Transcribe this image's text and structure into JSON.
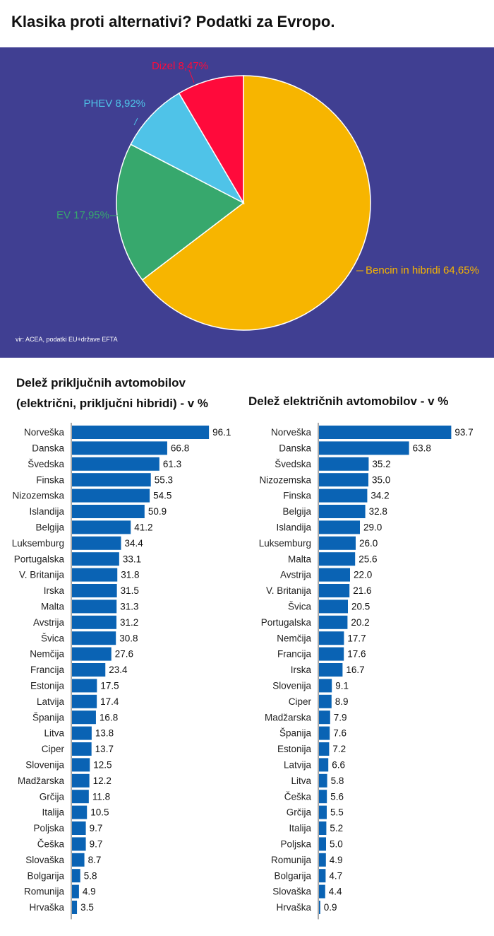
{
  "title": "Klasika proti alternativi? Podatki za Evropo.",
  "source": "vir: ACEA, podatki EU+države EFTA",
  "colors": {
    "panel_bg": "#403f92",
    "bar": "#0a63b4",
    "axis": "#555555"
  },
  "chart_data": [
    {
      "type": "pie",
      "slices": [
        {
          "label": "Bencin in hibridi 64,65%",
          "value": 64.65,
          "color": "#f7b500"
        },
        {
          "label": "EV 17,95%",
          "value": 17.95,
          "color": "#37a86d"
        },
        {
          "label": "PHEV 8,92%",
          "value": 8.92,
          "color": "#4fc3e8"
        },
        {
          "label": "Dizel 8,47%",
          "value": 8.47,
          "color": "#ff0a3b"
        }
      ]
    },
    {
      "type": "bar",
      "orientation": "horizontal",
      "title_line1": "Delež priključnih avtomobilov",
      "title_line2": "(električni, priključni hibridi) - v %",
      "categories": [
        "Norveška",
        "Danska",
        "Švedska",
        "Finska",
        "Nizozemska",
        "Islandija",
        "Belgija",
        "Luksemburg",
        "Portugalska",
        "V. Britanija",
        "Irska",
        "Malta",
        "Avstrija",
        "Švica",
        "Nemčija",
        "Francija",
        "Estonija",
        "Latvija",
        "Španija",
        "Litva",
        "Ciper",
        "Slovenija",
        "Madžarska",
        "Grčija",
        "Italija",
        "Poljska",
        "Češka",
        "Slovaška",
        "Bolgarija",
        "Romunija",
        "Hrvaška"
      ],
      "values": [
        96.1,
        66.8,
        61.3,
        55.3,
        54.5,
        50.9,
        41.2,
        34.4,
        33.1,
        31.8,
        31.5,
        31.3,
        31.2,
        30.8,
        27.6,
        23.4,
        17.5,
        17.4,
        16.8,
        13.8,
        13.7,
        12.5,
        12.2,
        11.8,
        10.5,
        9.7,
        9.7,
        8.7,
        5.8,
        4.9,
        3.5
      ],
      "value_labels": [
        "96.1",
        "66.8",
        "61.3",
        "55.3",
        "54.5",
        "50.9",
        "41.2",
        "34.4",
        "33.1",
        "31.8",
        "31.5",
        "31.3",
        "31.2",
        "30.8",
        "27.6",
        "23.4",
        "17.5",
        "17.4",
        "16.8",
        "13.8",
        "13.7",
        "12.5",
        "12.2",
        "11.8",
        "10.5",
        "9.7",
        "9.7",
        "8.7",
        "5.8",
        "4.9",
        "3.5"
      ],
      "xlim": [
        0,
        100
      ]
    },
    {
      "type": "bar",
      "orientation": "horizontal",
      "title_line1": "Delež električnih avtomobilov - v %",
      "categories": [
        "Norveška",
        "Danska",
        "Švedska",
        "Nizozemska",
        "Finska",
        "Belgija",
        "Islandija",
        "Luksemburg",
        "Malta",
        "Avstrija",
        "V. Britanija",
        "Švica",
        "Portugalska",
        "Nemčija",
        "Francija",
        "Irska",
        "Slovenija",
        "Ciper",
        "Madžarska",
        "Španija",
        "Estonija",
        "Latvija",
        "Litva",
        "Češka",
        "Grčija",
        "Italija",
        "Poljska",
        "Romunija",
        "Bolgarija",
        "Slovaška",
        "Hrvaška"
      ],
      "values": [
        93.7,
        63.8,
        35.2,
        35.0,
        34.2,
        32.8,
        29.0,
        26.0,
        25.6,
        22.0,
        21.6,
        20.5,
        20.2,
        17.7,
        17.6,
        16.7,
        9.1,
        8.9,
        7.9,
        7.6,
        7.2,
        6.6,
        5.8,
        5.6,
        5.5,
        5.2,
        5.0,
        4.9,
        4.7,
        4.4,
        0.9
      ],
      "value_labels": [
        "93.7",
        "63.8",
        "35.2",
        "35.0",
        "34.2",
        "32.8",
        "29.0",
        "26.0",
        "25.6",
        "22.0",
        "21.6",
        "20.5",
        "20.2",
        "17.7",
        "17.6",
        "16.7",
        "9.1",
        "8.9",
        "7.9",
        "7.6",
        "7.2",
        "6.6",
        "5.8",
        "5.6",
        "5.5",
        "5.2",
        "5.0",
        "4.9",
        "4.7",
        "4.4",
        "0.9"
      ],
      "xlim": [
        0,
        100
      ]
    }
  ]
}
